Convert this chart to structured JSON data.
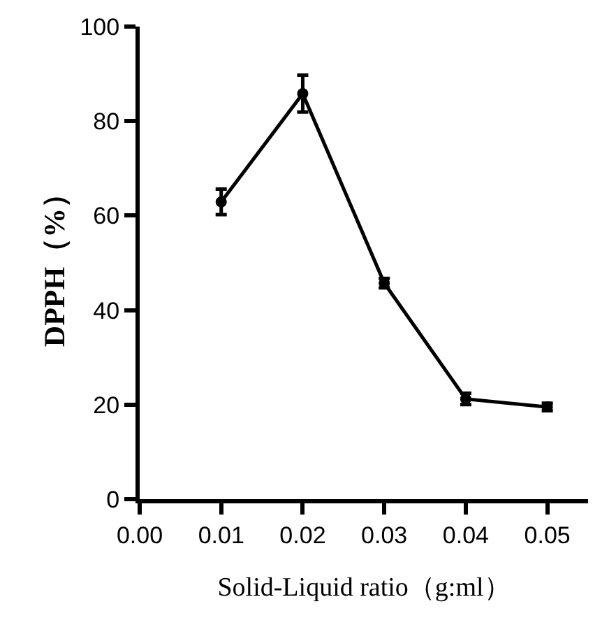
{
  "chart_data": {
    "type": "line",
    "xlabel": "Solid-Liquid ratio（g:ml）",
    "ylabel": "DPPH（%）",
    "x": [
      0.01,
      0.02,
      0.03,
      0.04,
      0.05
    ],
    "series": [
      {
        "color": "#000000",
        "values": [
          62.9,
          85.8,
          45.7,
          21.2,
          19.5
        ],
        "errors": [
          2.7,
          3.9,
          1,
          1.2,
          0.8
        ]
      }
    ],
    "xlim": [
      0,
      0.055
    ],
    "xticks": [
      {
        "value": 0,
        "label": "0.00"
      },
      0.01,
      0.02,
      0.03,
      0.04,
      0.05
    ],
    "ylim": [
      0,
      100
    ],
    "yticks": [
      0,
      20,
      40,
      60,
      80,
      100
    ],
    "grid": false,
    "marker": "circle",
    "line_style": "solid"
  }
}
